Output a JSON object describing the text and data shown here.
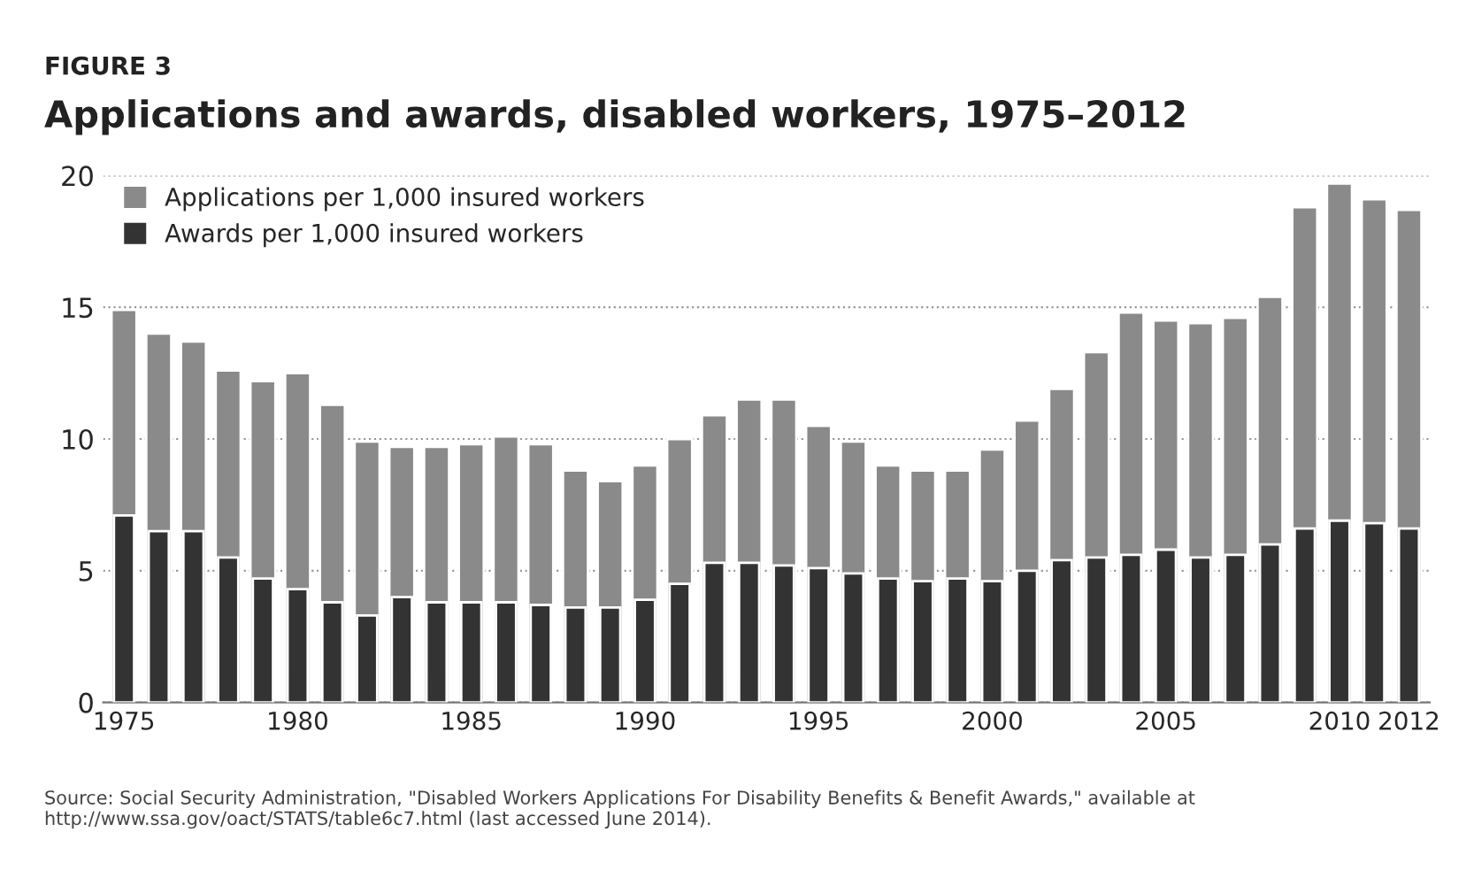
{
  "chart_data": {
    "type": "bar",
    "subtitle": "FIGURE 3",
    "title": "Applications and awards, disabled workers, 1975–2012",
    "categories": [
      "1975",
      null,
      null,
      null,
      null,
      "1980",
      null,
      null,
      null,
      null,
      "1985",
      null,
      null,
      null,
      null,
      "1990",
      null,
      null,
      null,
      null,
      "1995",
      null,
      null,
      null,
      null,
      "2000",
      null,
      null,
      null,
      null,
      "2005",
      null,
      null,
      null,
      null,
      "2010",
      null,
      "2012"
    ],
    "series": [
      {
        "name": "Applications per 1,000 insured workers",
        "color": "#8a8a8a",
        "values": [
          14.9,
          14.0,
          13.7,
          12.6,
          12.2,
          12.5,
          11.3,
          9.9,
          9.7,
          9.7,
          9.8,
          10.1,
          9.8,
          8.8,
          8.4,
          9.0,
          10.0,
          10.9,
          11.5,
          11.5,
          10.5,
          9.9,
          9.0,
          8.8,
          8.8,
          9.6,
          10.7,
          11.9,
          13.3,
          14.8,
          14.5,
          14.4,
          14.6,
          15.4,
          18.8,
          19.7,
          19.1,
          18.7
        ]
      },
      {
        "name": "Awards per 1,000 insured workers",
        "color": "#333333",
        "values": [
          7.1,
          6.5,
          6.5,
          5.5,
          4.7,
          4.3,
          3.8,
          3.3,
          4.0,
          3.8,
          3.8,
          3.8,
          3.7,
          3.6,
          3.6,
          3.9,
          4.5,
          5.3,
          5.3,
          5.2,
          5.1,
          4.9,
          4.7,
          4.6,
          4.7,
          4.6,
          5.0,
          5.4,
          5.5,
          5.6,
          5.8,
          5.5,
          5.6,
          6.0,
          6.6,
          6.9,
          6.8,
          6.6
        ]
      }
    ],
    "ylim": [
      0,
      20
    ],
    "yticks": [
      0,
      5,
      10,
      15,
      20
    ],
    "grid": "y",
    "legend": "top left",
    "annotations": [
      "Source: Social Security Administration, \"Disabled Workers Applications For Disability Benefits & Benefit Awards,\" available at http://www.ssa.gov/oact/STATS/table6c7.html (last accessed June 2014)."
    ]
  }
}
